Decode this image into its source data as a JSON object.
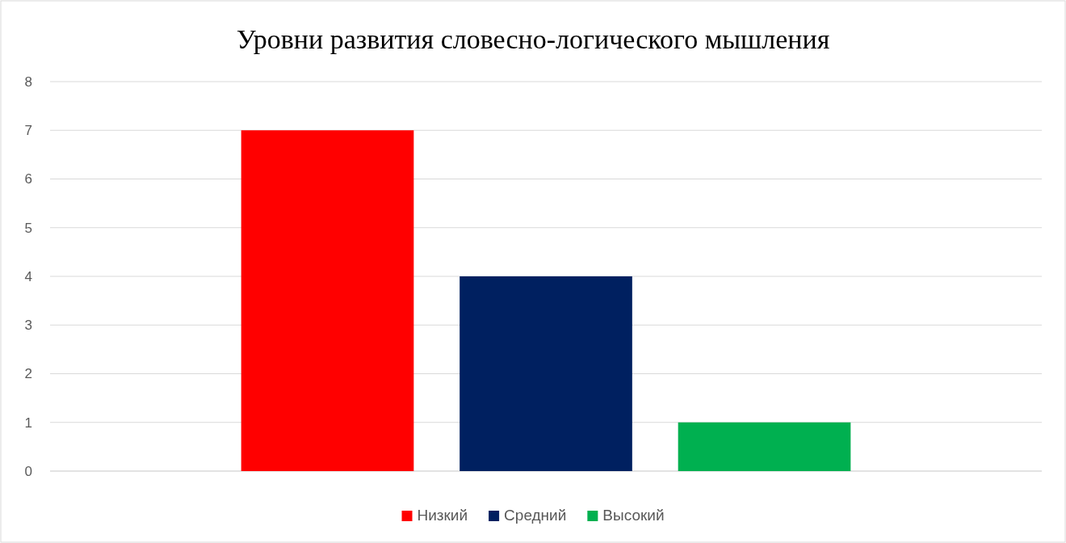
{
  "chart_data": {
    "type": "bar",
    "title": "Уровни развития словесно-логического мышления",
    "categories": [
      null
    ],
    "series": [
      {
        "name": "Низкий",
        "color": "#ff0000",
        "values": [
          7
        ]
      },
      {
        "name": "Средний",
        "color": "#002060",
        "values": [
          4
        ]
      },
      {
        "name": "Высокий",
        "color": "#00b050",
        "values": [
          1
        ]
      }
    ],
    "ylim": [
      0,
      8
    ],
    "yticks": [
      0,
      1,
      2,
      3,
      4,
      5,
      6,
      7,
      8
    ],
    "grid": "y",
    "legend": "bottom"
  }
}
